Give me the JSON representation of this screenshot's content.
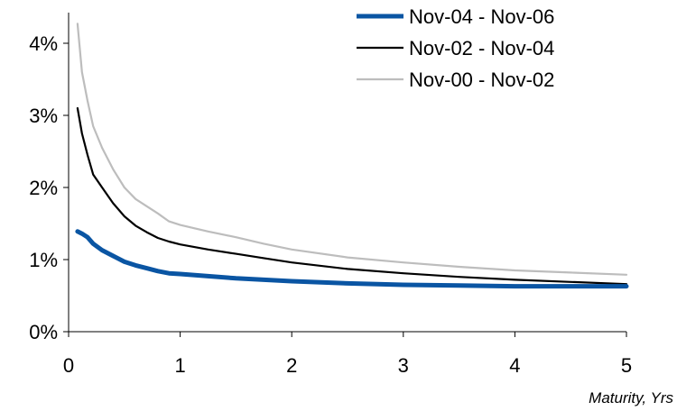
{
  "chart_data": {
    "type": "line",
    "title": "",
    "xlabel": "Maturity, Yrs",
    "ylabel": "",
    "xlim": [
      0,
      5
    ],
    "ylim": [
      0,
      4.5
    ],
    "grid": false,
    "legend_position": "top-right",
    "x_ticks": [
      "0",
      "1",
      "2",
      "3",
      "4",
      "5"
    ],
    "y_ticks": [
      "0%",
      "1%",
      "2%",
      "3%",
      "4%"
    ],
    "series": [
      {
        "name": "Nov-04 - Nov-06",
        "color": "#0a55a3",
        "line": "thick",
        "x": [
          0.08,
          0.12,
          0.17,
          0.22,
          0.3,
          0.4,
          0.5,
          0.6,
          0.7,
          0.8,
          0.9,
          1.0,
          1.25,
          1.5,
          1.75,
          2.0,
          2.5,
          3.0,
          3.5,
          4.0,
          4.5,
          5.0
        ],
        "y": [
          1.39,
          1.36,
          1.31,
          1.22,
          1.13,
          1.05,
          0.97,
          0.92,
          0.88,
          0.84,
          0.81,
          0.8,
          0.77,
          0.74,
          0.72,
          0.7,
          0.67,
          0.65,
          0.64,
          0.63,
          0.63,
          0.63
        ]
      },
      {
        "name": "Nov-02 - Nov-04",
        "color": "#000000",
        "line": "medium",
        "x": [
          0.08,
          0.12,
          0.17,
          0.22,
          0.3,
          0.4,
          0.5,
          0.6,
          0.7,
          0.8,
          0.9,
          1.0,
          1.25,
          1.5,
          1.75,
          2.0,
          2.5,
          3.0,
          3.5,
          4.0,
          4.5,
          5.0
        ],
        "y": [
          3.1,
          2.75,
          2.45,
          2.18,
          2.0,
          1.78,
          1.6,
          1.47,
          1.38,
          1.3,
          1.25,
          1.21,
          1.14,
          1.08,
          1.02,
          0.96,
          0.87,
          0.81,
          0.76,
          0.72,
          0.69,
          0.66
        ]
      },
      {
        "name": "Nov-00 - Nov-02",
        "color": "#bdbdbd",
        "line": "medium",
        "x": [
          0.08,
          0.12,
          0.17,
          0.22,
          0.3,
          0.4,
          0.5,
          0.6,
          0.7,
          0.8,
          0.9,
          1.0,
          1.25,
          1.5,
          1.75,
          2.0,
          2.5,
          3.0,
          3.5,
          4.0,
          4.5,
          5.0
        ],
        "y": [
          4.27,
          3.6,
          3.2,
          2.85,
          2.55,
          2.25,
          2.0,
          1.84,
          1.74,
          1.64,
          1.53,
          1.48,
          1.39,
          1.31,
          1.22,
          1.14,
          1.03,
          0.96,
          0.9,
          0.85,
          0.82,
          0.79
        ]
      }
    ]
  }
}
